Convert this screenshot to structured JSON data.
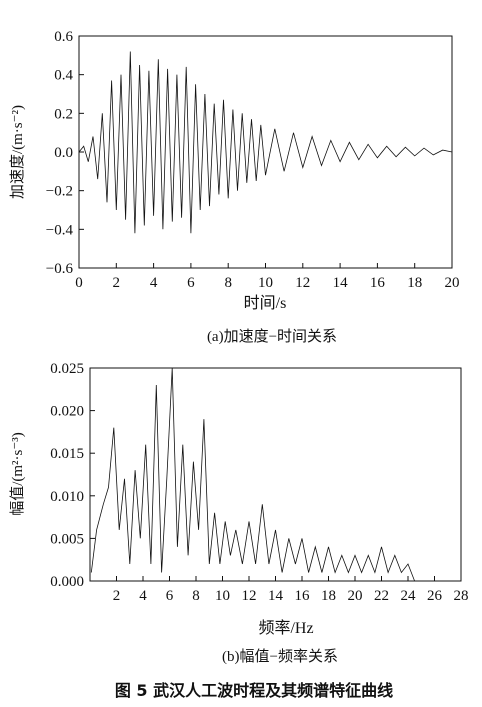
{
  "figure_caption": "图 5   武汉人工波时程及其频谱特征曲线",
  "chart_data": [
    {
      "type": "line",
      "subcaption": "(a)加速度−时间关系",
      "xlabel": "时间/s",
      "ylabel": "加速度/(m·s⁻²)",
      "xlim": [
        0,
        20
      ],
      "ylim": [
        -0.6,
        0.6
      ],
      "xticks": [
        "0",
        "2",
        "4",
        "6",
        "8",
        "10",
        "12",
        "14",
        "16",
        "18",
        "20"
      ],
      "yticks": [
        "−0.6",
        "−0.4",
        "−0.2",
        "0.0",
        "0.2",
        "0.4",
        "0.6"
      ],
      "grid": false,
      "series": [
        {
          "x": [
            0,
            0.25,
            0.5,
            0.75,
            1.0,
            1.25,
            1.5,
            1.75,
            2.0,
            2.25,
            2.5,
            2.75,
            3.0,
            3.25,
            3.5,
            3.75,
            4.0,
            4.25,
            4.5,
            4.75,
            5.0,
            5.25,
            5.5,
            5.75,
            6.0,
            6.25,
            6.5,
            6.75,
            7.0,
            7.25,
            7.5,
            7.75,
            8.0,
            8.25,
            8.5,
            8.75,
            9.0,
            9.25,
            9.5,
            9.75,
            10.0,
            10.5,
            11.0,
            11.5,
            12.0,
            12.5,
            13.0,
            13.5,
            14.0,
            14.5,
            15.0,
            15.5,
            16.0,
            16.5,
            17.0,
            17.5,
            18.0,
            18.5,
            19.0,
            19.5,
            20.0
          ],
          "y": [
            0.0,
            0.03,
            -0.05,
            0.08,
            -0.14,
            0.2,
            -0.26,
            0.37,
            -0.3,
            0.4,
            -0.35,
            0.52,
            -0.42,
            0.45,
            -0.38,
            0.42,
            -0.33,
            0.48,
            -0.4,
            0.43,
            -0.36,
            0.4,
            -0.34,
            0.44,
            -0.42,
            0.35,
            -0.3,
            0.3,
            -0.28,
            0.25,
            -0.22,
            0.27,
            -0.24,
            0.22,
            -0.2,
            0.2,
            -0.16,
            0.17,
            -0.15,
            0.14,
            -0.12,
            0.12,
            -0.1,
            0.1,
            -0.08,
            0.08,
            -0.07,
            0.06,
            -0.05,
            0.05,
            -0.04,
            0.04,
            -0.03,
            0.03,
            -0.025,
            0.025,
            -0.02,
            0.02,
            -0.015,
            0.01,
            0.0
          ]
        }
      ]
    },
    {
      "type": "line",
      "subcaption": "(b)幅值−频率关系",
      "xlabel": "频率/Hz",
      "ylabel": "幅值/(m²·s⁻³)",
      "xlim": [
        0,
        28
      ],
      "ylim": [
        0,
        0.025
      ],
      "xticks": [
        "2",
        "4",
        "6",
        "8",
        "10",
        "12",
        "14",
        "16",
        "18",
        "20",
        "22",
        "24",
        "26",
        "28"
      ],
      "yticks": [
        "0.000",
        "0.005",
        "0.010",
        "0.015",
        "0.020",
        "0.025"
      ],
      "grid": false,
      "series": [
        {
          "x": [
            0.1,
            0.5,
            1.0,
            1.4,
            1.8,
            2.2,
            2.6,
            3.0,
            3.4,
            3.8,
            4.2,
            4.6,
            5.0,
            5.4,
            5.8,
            6.2,
            6.6,
            7.0,
            7.4,
            7.8,
            8.2,
            8.6,
            9.0,
            9.4,
            9.8,
            10.2,
            10.6,
            11.0,
            11.5,
            12.0,
            12.5,
            13.0,
            13.5,
            14.0,
            14.5,
            15.0,
            15.5,
            16.0,
            16.5,
            17.0,
            17.5,
            18.0,
            18.5,
            19.0,
            19.5,
            20.0,
            20.5,
            21.0,
            21.5,
            22.0,
            22.5,
            23.0,
            23.5,
            24.0,
            24.5,
            25.0
          ],
          "y": [
            0.001,
            0.006,
            0.009,
            0.011,
            0.018,
            0.006,
            0.012,
            0.002,
            0.013,
            0.005,
            0.016,
            0.002,
            0.023,
            0.001,
            0.012,
            0.025,
            0.004,
            0.016,
            0.003,
            0.014,
            0.006,
            0.019,
            0.002,
            0.008,
            0.002,
            0.007,
            0.003,
            0.006,
            0.002,
            0.007,
            0.002,
            0.009,
            0.002,
            0.006,
            0.001,
            0.005,
            0.002,
            0.005,
            0.001,
            0.004,
            0.001,
            0.004,
            0.001,
            0.003,
            0.001,
            0.003,
            0.001,
            0.003,
            0.001,
            0.004,
            0.001,
            0.003,
            0.001,
            0.002,
            0.0,
            0.0
          ]
        }
      ]
    }
  ]
}
